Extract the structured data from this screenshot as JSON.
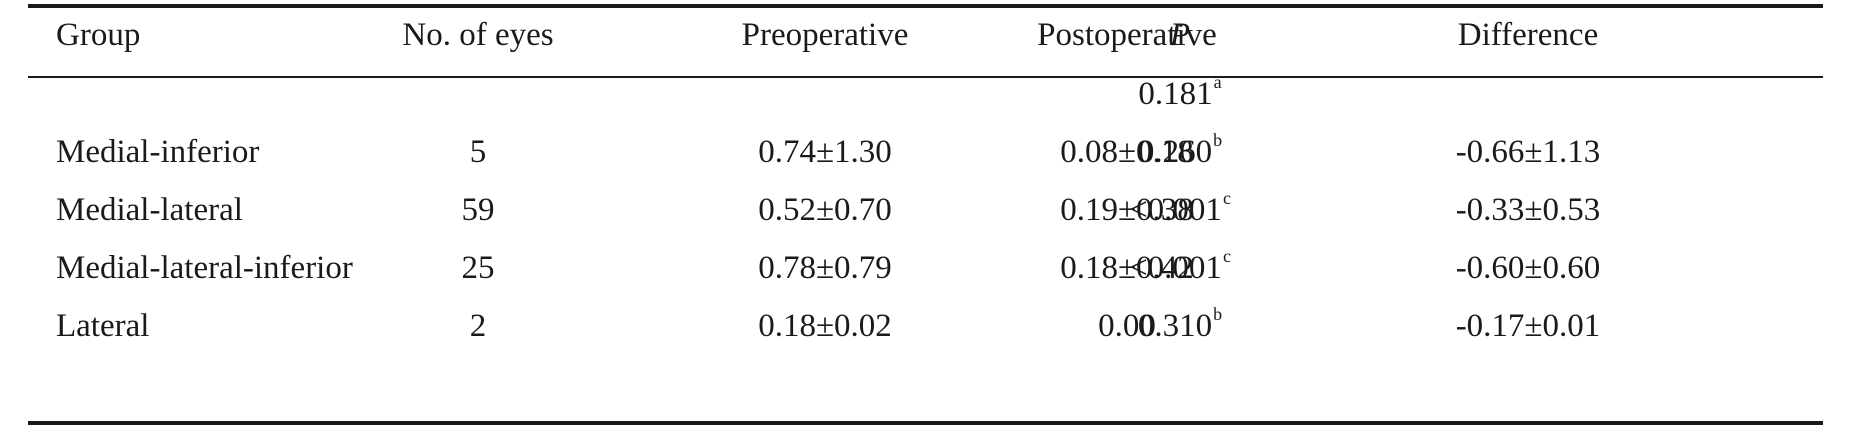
{
  "table": {
    "headers": {
      "group": "Group",
      "eyes": "No. of eyes",
      "pre": "Preoperative",
      "post": "Postoperative",
      "p": "P",
      "diff": "Difference"
    },
    "overall_p": {
      "value": "0.181",
      "sup": "a"
    },
    "rows": [
      {
        "group": "Medial-inferior",
        "eyes": "5",
        "pre": "0.74±1.30",
        "post": "0.08±0.18",
        "p": "0.260",
        "p_sup": "b",
        "diff": "-0.66±1.13"
      },
      {
        "group": "Medial-lateral",
        "eyes": "59",
        "pre": "0.52±0.70",
        "post": "0.19±0.38",
        "p": "<0.001",
        "p_sup": "c",
        "diff": "-0.33±0.53"
      },
      {
        "group": "Medial-lateral-inferior",
        "eyes": "25",
        "pre": "0.78±0.79",
        "post": "0.18±0.42",
        "p": "<0.001",
        "p_sup": "c",
        "diff": "-0.60±0.60"
      },
      {
        "group": "Lateral",
        "eyes": "2",
        "pre": "0.18±0.02",
        "post": "0.00",
        "p": "0.310",
        "p_sup": "b",
        "diff": "-0.17±0.01"
      }
    ]
  }
}
